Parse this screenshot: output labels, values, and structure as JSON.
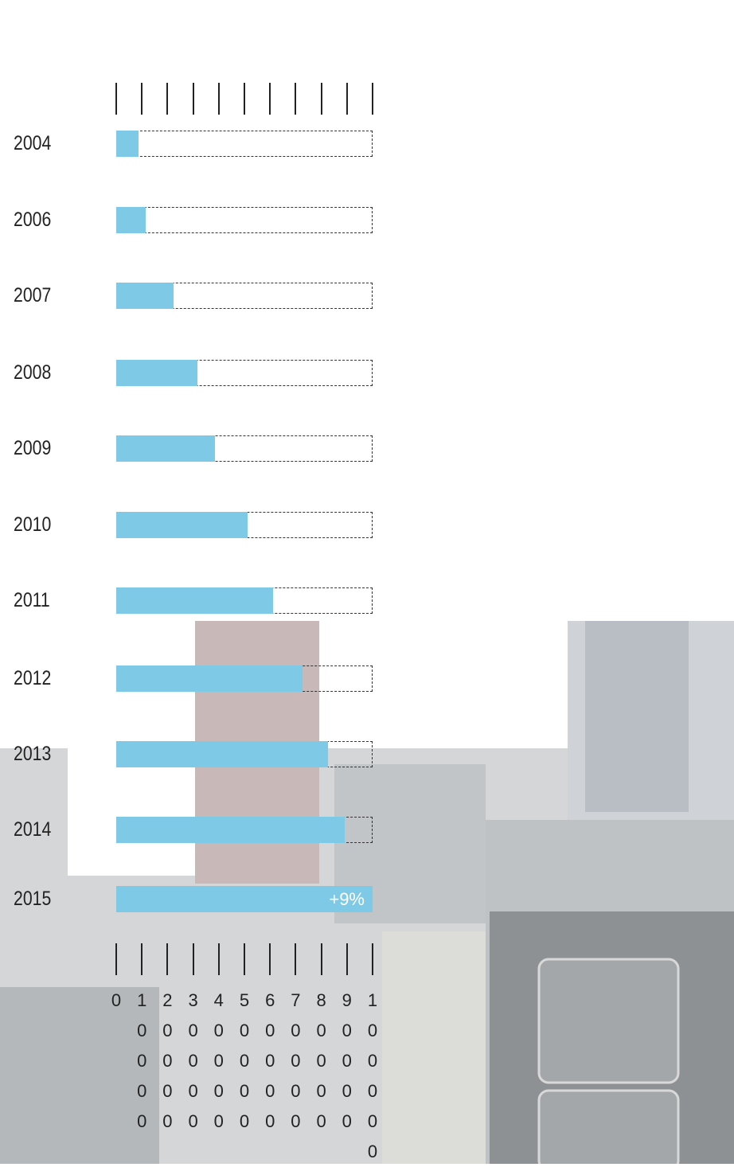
{
  "chart_data": {
    "type": "bar",
    "orientation": "horizontal",
    "categories": [
      "2004",
      "2006",
      "2007",
      "2008",
      "2009",
      "2010",
      "2011",
      "2012",
      "2013",
      "2014",
      "2015"
    ],
    "values": [
      8700,
      11500,
      22400,
      31700,
      38500,
      51200,
      61200,
      72700,
      82600,
      89100,
      100000
    ],
    "color": "#7ecae6",
    "xlim": [
      0,
      100000
    ],
    "xticks": [
      0,
      10000,
      20000,
      30000,
      40000,
      50000,
      60000,
      70000,
      80000,
      90000,
      100000
    ],
    "annotation": "+9%"
  }
}
